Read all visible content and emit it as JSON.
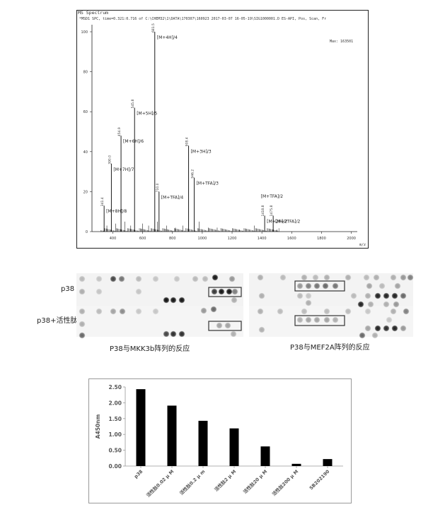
{
  "ms_spectrum": {
    "header_title": "MS Spectrum",
    "header_info": "*MSD1 SPC, time=0.321:0.716 of C:\\CHEM32\\1\\DATA\\170307\\160923 2017-03-07 16-05-19\\SIG1000001.D    ES-API, Pos, Scan, Fr",
    "base_label": "Max: 163501",
    "x_axis_unit": "m/z",
    "chart_data": {
      "type": "bar",
      "xlim": [
        260,
        2040
      ],
      "ylim": [
        0,
        100
      ],
      "x_ticks": [
        400,
        600,
        800,
        1000,
        1200,
        1400,
        1600,
        1800,
        2000
      ],
      "y_ticks": [
        0,
        20,
        40,
        60,
        80,
        100
      ],
      "peaks": [
        {
          "mz": 341.4,
          "intensity": 13,
          "mz_label": "341.4",
          "ion": "[M+8H]/8"
        },
        {
          "mz": 390.0,
          "intensity": 34,
          "mz_label": "390.0",
          "ion": "[M+7H]/7"
        },
        {
          "mz": 454.9,
          "intensity": 48,
          "mz_label": "454.9",
          "ion": "[M+6H]/6"
        },
        {
          "mz": 545.8,
          "intensity": 62,
          "mz_label": "545.8",
          "ion": "[M+5H]/5"
        },
        {
          "mz": 681.5,
          "intensity": 100,
          "mz_label": "681.5",
          "ion": "[M+4H]/4"
        },
        {
          "mz": 710.0,
          "intensity": 20,
          "mz_label": "710.0",
          "ion": "[M+TFA]/4"
        },
        {
          "mz": 908.4,
          "intensity": 43,
          "mz_label": "908.4",
          "ion": "[M+3H]/3"
        },
        {
          "mz": 946.2,
          "intensity": 27,
          "mz_label": "946.2",
          "ion": "[M+TFA]/3"
        },
        {
          "mz": 1418.8,
          "intensity": 8,
          "mz_label": "1418.8",
          "ion": "[M+2H]/2"
        },
        {
          "mz": 1475.8,
          "intensity": 8,
          "mz_label": "1475.8",
          "ion": "[M+2TFA]/2"
        }
      ],
      "extra_labels": [
        {
          "text": "[M+TFA]/2",
          "mz": 1393,
          "y": 17
        }
      ],
      "noise_peaks": [
        [
          360,
          3
        ],
        [
          420,
          4
        ],
        [
          480,
          5
        ],
        [
          520,
          3
        ],
        [
          600,
          4
        ],
        [
          640,
          3
        ],
        [
          700,
          5
        ],
        [
          760,
          3
        ],
        [
          820,
          2
        ],
        [
          870,
          3
        ],
        [
          980,
          5
        ],
        [
          1040,
          2
        ],
        [
          1100,
          2
        ],
        [
          1250,
          1
        ],
        [
          1350,
          3
        ],
        [
          1500,
          1
        ]
      ]
    }
  },
  "arrays": {
    "row_labels": [
      "p38",
      "p38+活性肽"
    ],
    "captions": [
      "P38与MKK3b阵列的反应",
      "P38与MEF2A阵列的反应"
    ]
  },
  "elisa": {
    "chart_data": {
      "type": "bar",
      "ylabel": "A450nm",
      "ylim": [
        0,
        2.5
      ],
      "y_ticks": [
        "0.00",
        "0.50",
        "1.00",
        "1.50",
        "2.00",
        "2.50"
      ],
      "categories": [
        "p38",
        "活性肽0.02 μ M",
        "活性肽0.2 μ m",
        "活性肽2 μ M",
        "活性肽20 μ M",
        "活性肽200 μ M",
        "SB202190"
      ],
      "values": [
        2.43,
        1.91,
        1.43,
        1.19,
        0.62,
        0.07,
        0.22
      ],
      "bar_color": "#000000"
    }
  }
}
